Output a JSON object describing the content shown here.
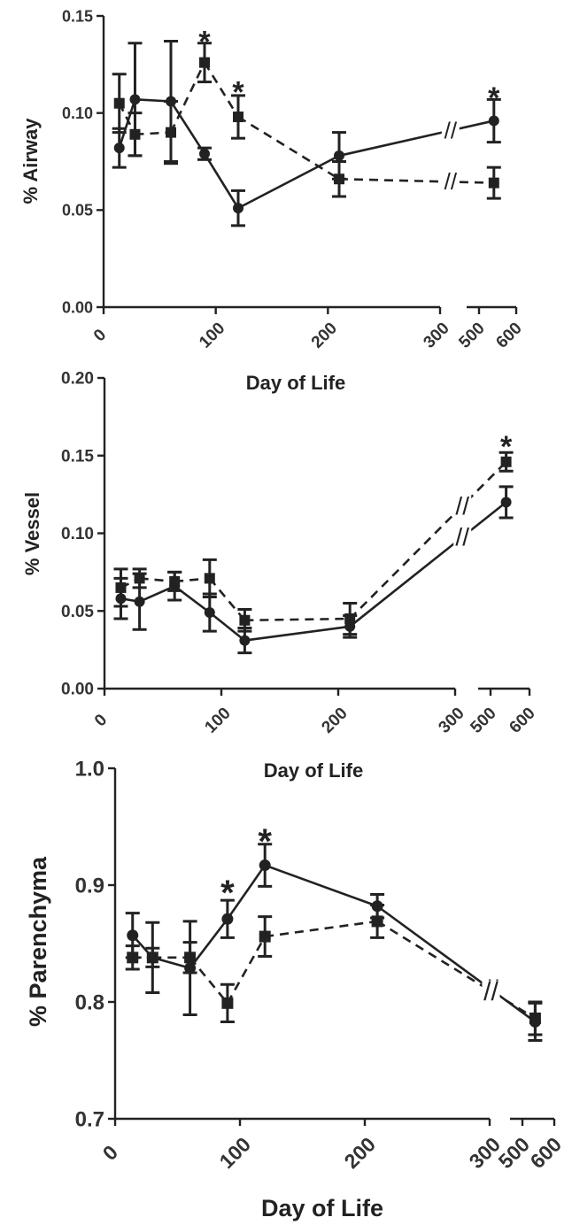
{
  "chart_data": [
    {
      "type": "line",
      "panel": "A",
      "title": "",
      "xlabel": "Day of Life",
      "ylabel": "% Airway",
      "xticks_left": [
        "0",
        "100",
        "200",
        "300"
      ],
      "xticks_right": [
        "500",
        "600"
      ],
      "xlim_left": [
        0,
        300
      ],
      "xlim_right": [
        475,
        600
      ],
      "ylim": [
        0,
        0.15
      ],
      "yticks": [
        "0.00",
        "0.05",
        "0.10",
        "0.15"
      ],
      "grid": false,
      "series": [
        {
          "style": "solid-circle",
          "points": [
            {
              "x": 14,
              "y": 0.082,
              "err": 0.01
            },
            {
              "x": 28,
              "y": 0.107,
              "err": 0.029
            },
            {
              "x": 60,
              "y": 0.106,
              "err": 0.031
            },
            {
              "x": 90,
              "y": 0.079,
              "err": 0.003
            },
            {
              "x": 120,
              "y": 0.051,
              "err": 0.009
            },
            {
              "x": 210,
              "y": 0.078,
              "err": 0.012
            },
            {
              "x": 540,
              "y": 0.096,
              "err": 0.011
            }
          ]
        },
        {
          "style": "dashed-square",
          "points": [
            {
              "x": 14,
              "y": 0.105,
              "err": 0.015
            },
            {
              "x": 28,
              "y": 0.089,
              "err": 0.011
            },
            {
              "x": 60,
              "y": 0.09,
              "err": 0.016
            },
            {
              "x": 90,
              "y": 0.126,
              "err": 0.01
            },
            {
              "x": 120,
              "y": 0.098,
              "err": 0.011
            },
            {
              "x": 210,
              "y": 0.066,
              "err": 0.009
            },
            {
              "x": 540,
              "y": 0.064,
              "err": 0.008
            }
          ]
        }
      ],
      "annotations": [
        {
          "text": "*",
          "x": 90,
          "y": 0.14
        },
        {
          "text": "*",
          "x": 120,
          "y": 0.114
        },
        {
          "text": "*",
          "x": 540,
          "y": 0.111
        }
      ],
      "axis_break_mark": "//"
    },
    {
      "type": "line",
      "panel": "B",
      "title": "",
      "xlabel": "Day of Life",
      "ylabel": "% Vessel",
      "xticks_left": [
        "0",
        "100",
        "200",
        "300"
      ],
      "xticks_right": [
        "500",
        "600"
      ],
      "xlim_left": [
        0,
        300
      ],
      "xlim_right": [
        475,
        600
      ],
      "ylim": [
        0,
        0.2
      ],
      "yticks": [
        "0.00",
        "0.05",
        "0.10",
        "0.15",
        "0.20"
      ],
      "grid": false,
      "series": [
        {
          "style": "solid-circle",
          "points": [
            {
              "x": 14,
              "y": 0.058,
              "err": 0.013
            },
            {
              "x": 30,
              "y": 0.056,
              "err": 0.018
            },
            {
              "x": 60,
              "y": 0.066,
              "err": 0.009
            },
            {
              "x": 90,
              "y": 0.049,
              "err": 0.012
            },
            {
              "x": 120,
              "y": 0.031,
              "err": 0.008
            },
            {
              "x": 210,
              "y": 0.04,
              "err": 0.007
            },
            {
              "x": 540,
              "y": 0.12,
              "err": 0.01
            }
          ]
        },
        {
          "style": "dashed-square",
          "points": [
            {
              "x": 14,
              "y": 0.065,
              "err": 0.012
            },
            {
              "x": 30,
              "y": 0.071,
              "err": 0.006
            },
            {
              "x": 60,
              "y": 0.069,
              "err": 0.006
            },
            {
              "x": 90,
              "y": 0.071,
              "err": 0.012
            },
            {
              "x": 120,
              "y": 0.044,
              "err": 0.007
            },
            {
              "x": 210,
              "y": 0.045,
              "err": 0.01
            },
            {
              "x": 540,
              "y": 0.146,
              "err": 0.006
            }
          ]
        }
      ],
      "annotations": [
        {
          "text": "*",
          "x": 540,
          "y": 0.16
        }
      ],
      "axis_break_mark": "//"
    },
    {
      "type": "line",
      "panel": "C",
      "title": "",
      "xlabel": "Day of Life",
      "ylabel": "% Parenchyma",
      "xticks_left": [
        "0",
        "100",
        "200",
        "300"
      ],
      "xticks_right": [
        "500",
        "600"
      ],
      "xlim_left": [
        0,
        300
      ],
      "xlim_right": [
        475,
        600
      ],
      "ylim": [
        0.7,
        1.0
      ],
      "yticks": [
        "0.7",
        "0.8",
        "0.9",
        "1.0"
      ],
      "grid": false,
      "series": [
        {
          "style": "solid-circle",
          "points": [
            {
              "x": 14,
              "y": 0.857,
              "err": 0.019
            },
            {
              "x": 30,
              "y": 0.838,
              "err": 0.03
            },
            {
              "x": 60,
              "y": 0.829,
              "err": 0.04
            },
            {
              "x": 90,
              "y": 0.871,
              "err": 0.016
            },
            {
              "x": 120,
              "y": 0.917,
              "err": 0.018
            },
            {
              "x": 210,
              "y": 0.882,
              "err": 0.01
            },
            {
              "x": 540,
              "y": 0.783,
              "err": 0.016
            }
          ]
        },
        {
          "style": "dashed-square",
          "points": [
            {
              "x": 14,
              "y": 0.838,
              "err": 0.01
            },
            {
              "x": 30,
              "y": 0.838,
              "err": 0.008
            },
            {
              "x": 60,
              "y": 0.838,
              "err": 0.013
            },
            {
              "x": 90,
              "y": 0.799,
              "err": 0.016
            },
            {
              "x": 120,
              "y": 0.856,
              "err": 0.017
            },
            {
              "x": 210,
              "y": 0.869,
              "err": 0.014
            },
            {
              "x": 540,
              "y": 0.786,
              "err": 0.014
            }
          ]
        }
      ],
      "annotations": [
        {
          "text": "*",
          "x": 90,
          "y": 0.9
        },
        {
          "text": "*",
          "x": 120,
          "y": 0.944
        }
      ],
      "axis_break_mark": "//"
    }
  ]
}
